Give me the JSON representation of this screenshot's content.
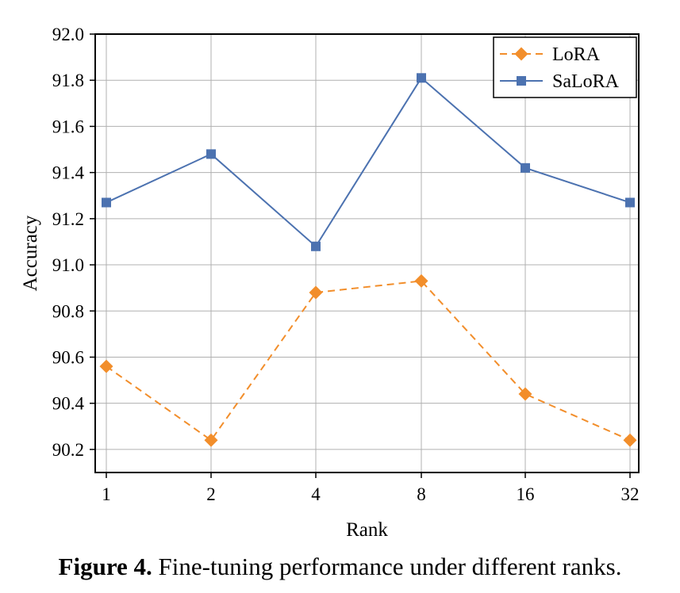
{
  "chart_data": {
    "type": "line",
    "categories": [
      "1",
      "2",
      "4",
      "8",
      "16",
      "32"
    ],
    "series": [
      {
        "name": "LoRA",
        "values": [
          90.56,
          90.24,
          90.88,
          90.93,
          90.44,
          90.24
        ],
        "color": "#f28e2b",
        "line_style": "dashed",
        "marker": "diamond"
      },
      {
        "name": "SaLoRA",
        "values": [
          91.27,
          91.48,
          91.08,
          91.81,
          91.42,
          91.27
        ],
        "color": "#4c72b0",
        "line_style": "solid",
        "marker": "square"
      }
    ],
    "xlabel": "Rank",
    "ylabel": "Accuracy",
    "ylim": [
      90.1,
      92.0
    ],
    "yticks": [
      "90.2",
      "90.4",
      "90.6",
      "90.8",
      "91.0",
      "91.2",
      "91.4",
      "91.6",
      "91.8",
      "92.0"
    ],
    "grid": true,
    "legend_position": "top-right"
  },
  "caption": {
    "label": "Figure 4.",
    "text": " Fine-tuning performance under different ranks."
  }
}
